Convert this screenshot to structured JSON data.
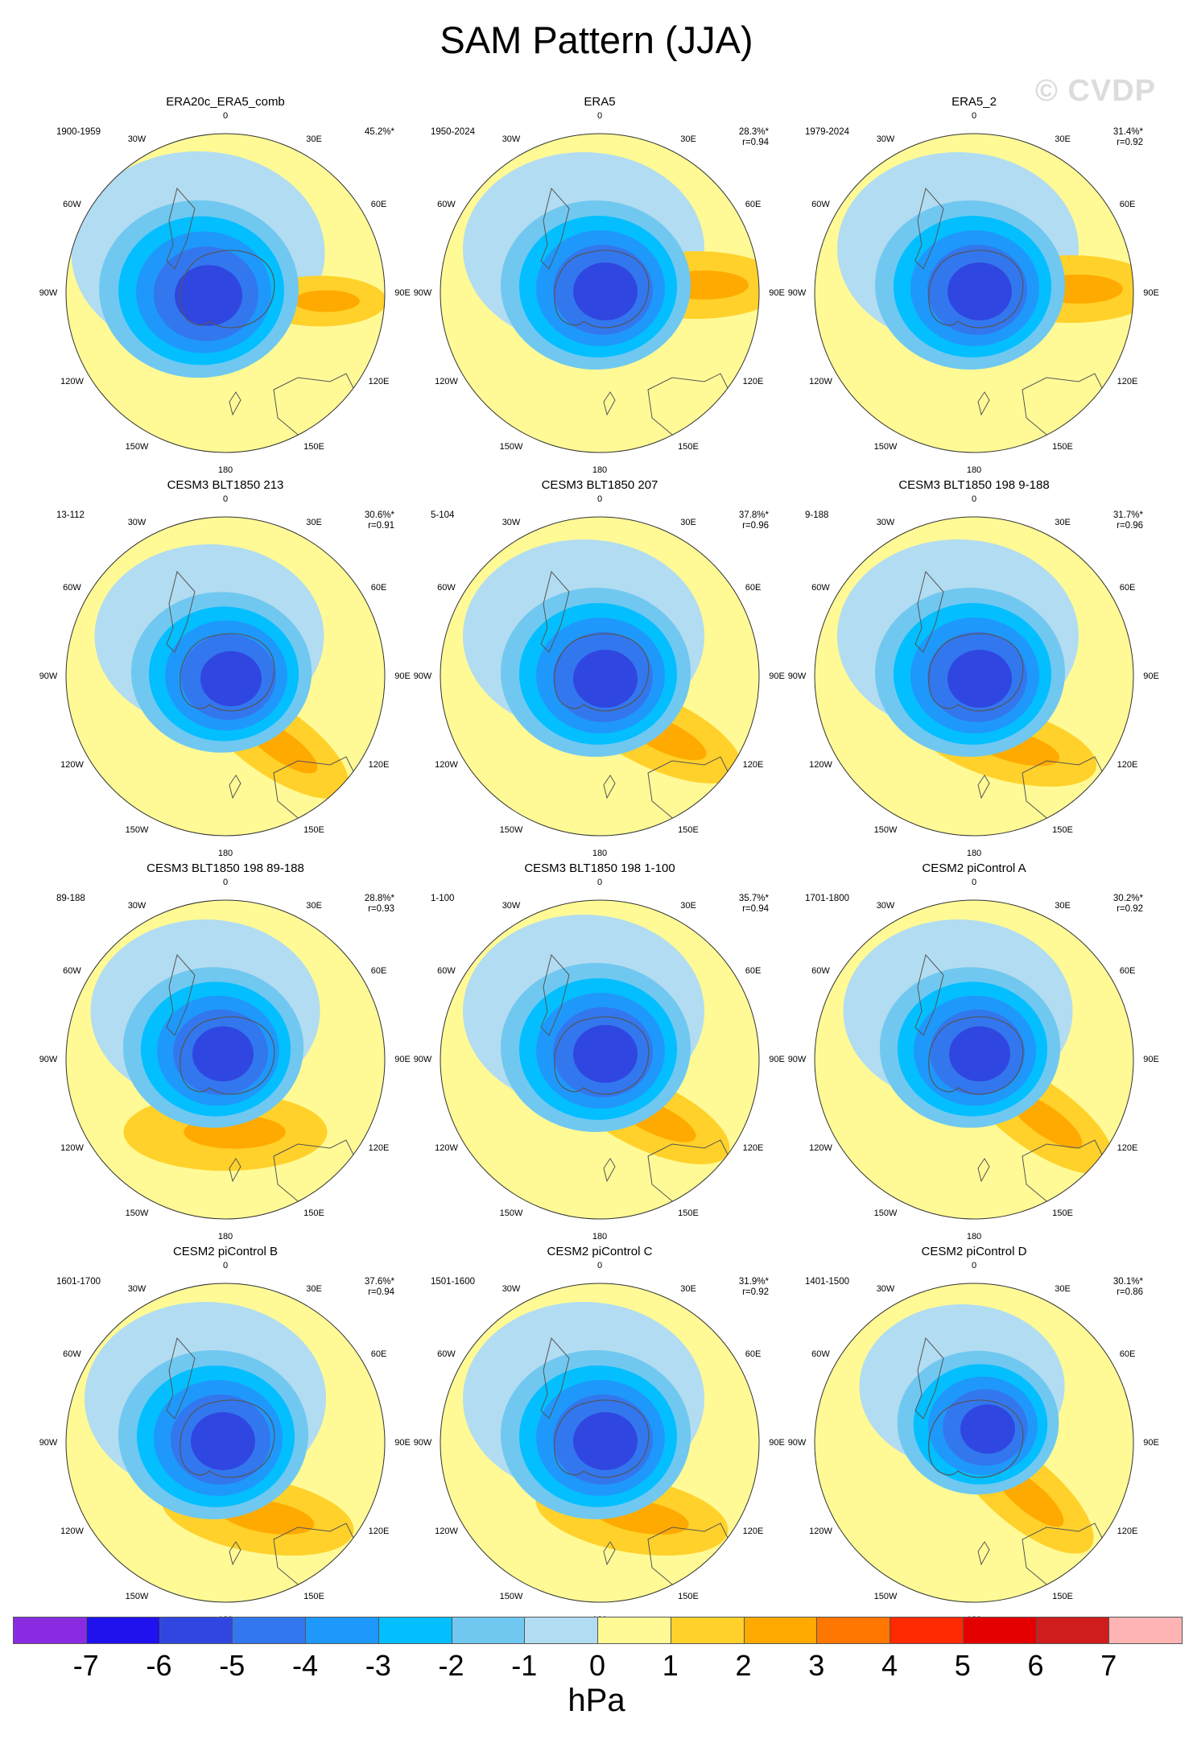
{
  "title": "SAM Pattern (JJA)",
  "watermark": "© CVDP",
  "lon_labels": [
    "0",
    "30E",
    "60E",
    "90E",
    "120E",
    "150E",
    "180",
    "150W",
    "120W",
    "90W",
    "60W",
    "30W"
  ],
  "panels": [
    {
      "title": "ERA20c_ERA5_comb",
      "period": "1900-1959",
      "pct": "45.2%*",
      "r": ""
    },
    {
      "title": "ERA5",
      "period": "1950-2024",
      "pct": "28.3%*",
      "r": "r=0.94"
    },
    {
      "title": "ERA5_2",
      "period": "1979-2024",
      "pct": "31.4%*",
      "r": "r=0.92"
    },
    {
      "title": "CESM3 BLT1850 213",
      "period": "13-112",
      "pct": "30.6%*",
      "r": "r=0.91"
    },
    {
      "title": "CESM3 BLT1850 207",
      "period": "5-104",
      "pct": "37.8%*",
      "r": "r=0.96"
    },
    {
      "title": "CESM3 BLT1850 198 9-188",
      "period": "9-188",
      "pct": "31.7%*",
      "r": "r=0.96"
    },
    {
      "title": "CESM3 BLT1850 198 89-188",
      "period": "89-188",
      "pct": "28.8%*",
      "r": "r=0.93"
    },
    {
      "title": "CESM3 BLT1850 198 1-100",
      "period": "1-100",
      "pct": "35.7%*",
      "r": "r=0.94"
    },
    {
      "title": "CESM2 piControl A",
      "period": "1701-1800",
      "pct": "30.2%*",
      "r": "r=0.92"
    },
    {
      "title": "CESM2 piControl B",
      "period": "1601-1700",
      "pct": "37.6%*",
      "r": "r=0.94"
    },
    {
      "title": "CESM2 piControl C",
      "period": "1501-1600",
      "pct": "31.9%*",
      "r": "r=0.92"
    },
    {
      "title": "CESM2 piControl D",
      "period": "1401-1500",
      "pct": "30.1%*",
      "r": "r=0.86"
    }
  ],
  "colorbar": {
    "units": "hPa",
    "labels": [
      "-7",
      "-6",
      "-5",
      "-4",
      "-3",
      "-2",
      "-1",
      "0",
      "1",
      "2",
      "3",
      "4",
      "5",
      "6",
      "7"
    ],
    "colors": [
      "#8a2be2",
      "#1f12ee",
      "#2f47e0",
      "#3377ee",
      "#1f98fb",
      "#03bfff",
      "#70c8f0",
      "#b2dcf1",
      "#fffa96",
      "#ffd12a",
      "#ffaa00",
      "#ff7700",
      "#ff2a00",
      "#e40000",
      "#d01c1c",
      "#ffb4b4"
    ]
  }
}
